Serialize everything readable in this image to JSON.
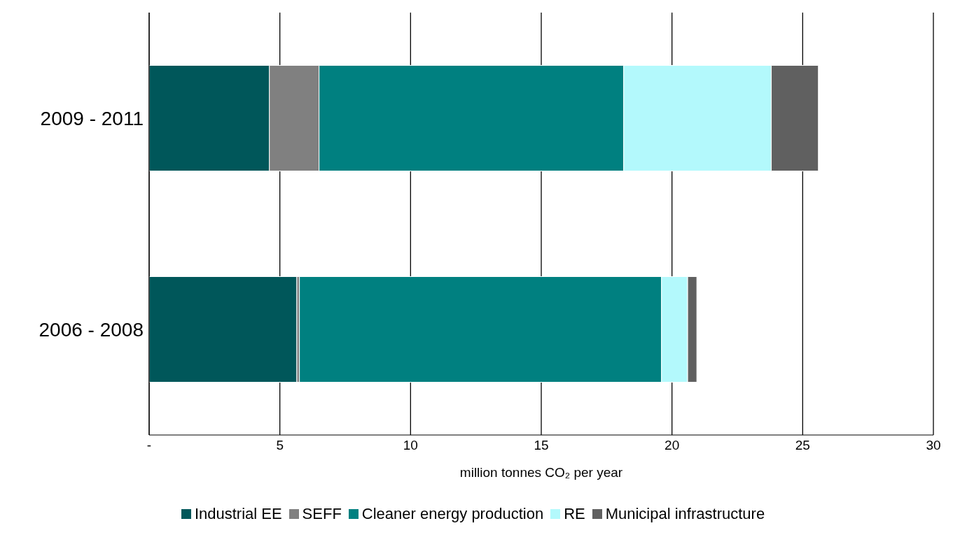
{
  "chart_data": {
    "type": "bar",
    "orientation": "horizontal",
    "stacked": true,
    "categories": [
      "2009 - 2011",
      "2006 - 2008"
    ],
    "series": [
      {
        "name": "Industrial EE",
        "color": "#00575a",
        "values": [
          4.6,
          5.65
        ]
      },
      {
        "name": "SEFF",
        "color": "#808080",
        "values": [
          1.9,
          0.1
        ]
      },
      {
        "name": "Cleaner energy production",
        "color": "#008080",
        "values": [
          11.65,
          13.85
        ]
      },
      {
        "name": "RE",
        "color": "#b3f9fc",
        "values": [
          5.65,
          1.0
        ]
      },
      {
        "name": "Municipal infrastructure",
        "color": "#606060",
        "values": [
          1.8,
          0.35
        ]
      }
    ],
    "xlim": [
      0,
      30
    ],
    "xticks": [
      {
        "value": 0,
        "label": "-"
      },
      5,
      10,
      15,
      20,
      25,
      30
    ],
    "xlabel": "million tonnes CO₂ per year",
    "grid": "x",
    "legend": "bottom"
  }
}
